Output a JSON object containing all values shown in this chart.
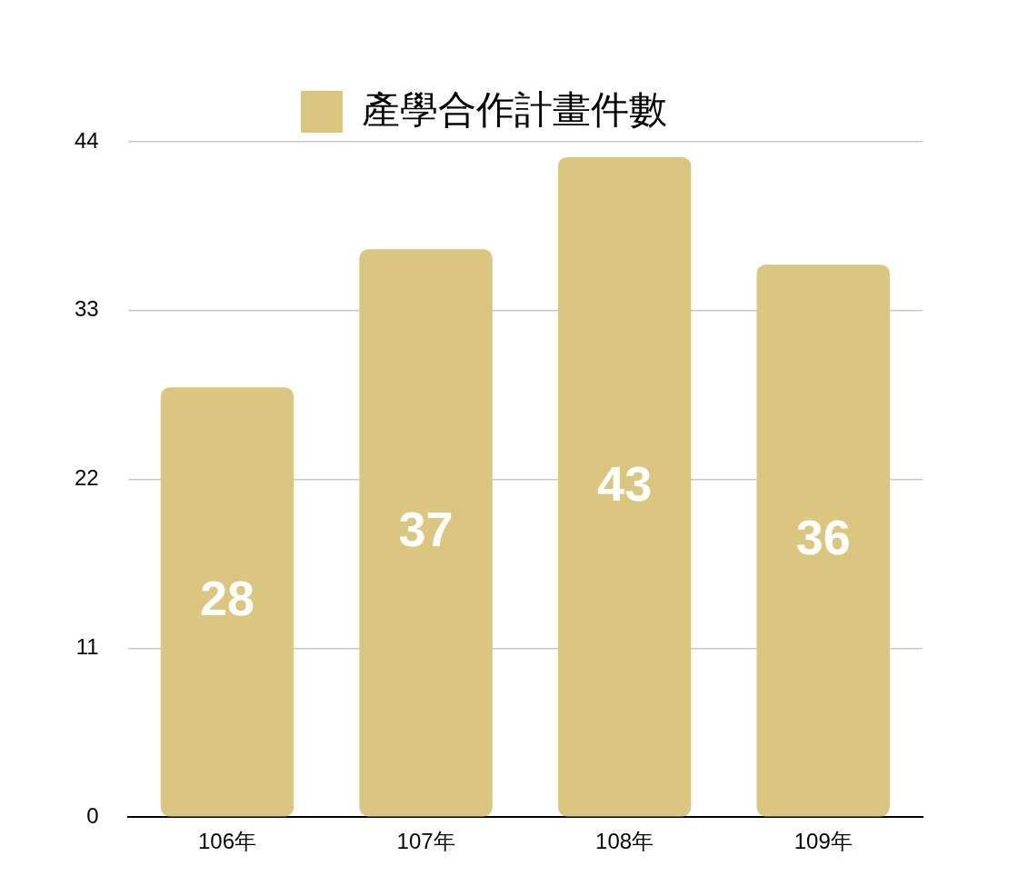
{
  "chart_data": {
    "type": "bar",
    "categories": [
      "106年",
      "107年",
      "108年",
      "109年"
    ],
    "series": [
      {
        "name": "產學合作計畫件數",
        "color": "#dbc680",
        "values": [
          28,
          37,
          43,
          36
        ]
      }
    ],
    "ylim": [
      0,
      44
    ],
    "yticks": [
      0,
      11,
      22,
      33,
      44
    ],
    "grid": "y",
    "legend": "top",
    "data_labels": true
  }
}
